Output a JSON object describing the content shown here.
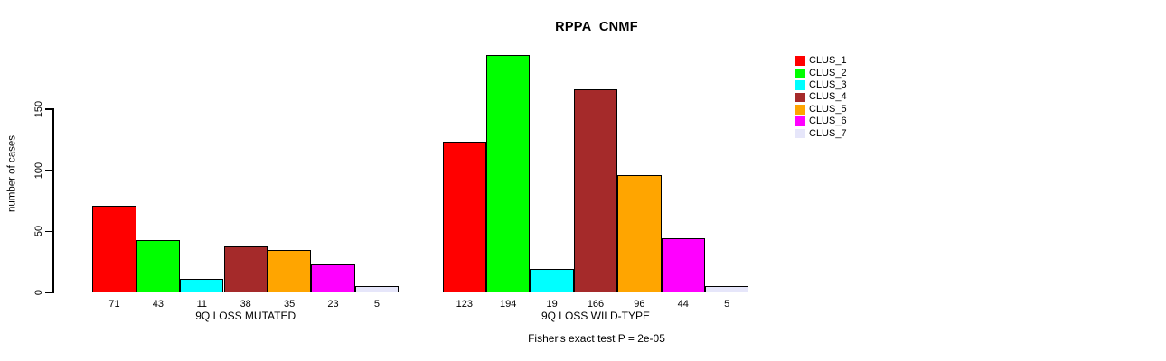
{
  "chart_data": {
    "type": "bar",
    "title": "RPPA_CNMF",
    "ylabel": "number of cases",
    "annotation": "Fisher's exact test P = 2e-05",
    "categories": [
      "9Q LOSS MUTATED",
      "9Q LOSS WILD-TYPE"
    ],
    "series": [
      {
        "name": "CLUS_1",
        "color": "#FF0000",
        "values": [
          71,
          123
        ]
      },
      {
        "name": "CLUS_2",
        "color": "#00FF00",
        "values": [
          43,
          194
        ]
      },
      {
        "name": "CLUS_3",
        "color": "#00FFFF",
        "values": [
          11,
          19
        ]
      },
      {
        "name": "CLUS_4",
        "color": "#A52A2A",
        "values": [
          38,
          166
        ]
      },
      {
        "name": "CLUS_5",
        "color": "#FFA500",
        "values": [
          35,
          96
        ]
      },
      {
        "name": "CLUS_6",
        "color": "#FF00FF",
        "values": [
          23,
          44
        ]
      },
      {
        "name": "CLUS_7",
        "color": "#E6E6FA",
        "values": [
          5,
          5
        ]
      }
    ],
    "yticks": [
      0,
      50,
      100,
      150
    ],
    "ylim": [
      0,
      200
    ],
    "grid": false,
    "legend_position": "right-outside",
    "bar_border_color": "#000000",
    "value_labels_under_bars": true
  }
}
